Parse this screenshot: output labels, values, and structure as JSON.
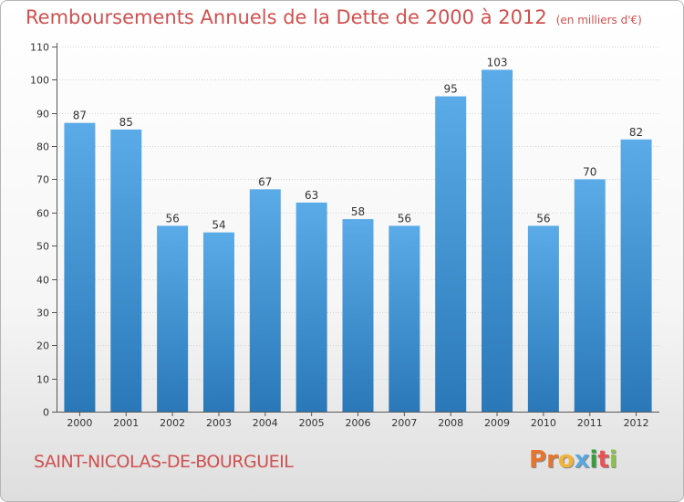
{
  "header": {
    "title": "Remboursements Annuels de la Dette de 2000 à 2012",
    "unit": "(en milliers d'€)"
  },
  "footer": {
    "town": "SAINT-NICOLAS-DE-BOURGUEIL",
    "logo": [
      "P",
      "r",
      "o",
      "x",
      "i",
      "t",
      "i"
    ]
  },
  "colors": {
    "title": "#d0504f",
    "bar_top": "#5aabe8",
    "bar_bottom": "#2a78b8",
    "logo": [
      "#e8742c",
      "#e8742c",
      "#f1b33a",
      "#5aa7dd",
      "#3a9c3a",
      "#e85454",
      "#8bc34a"
    ]
  },
  "chart_data": {
    "type": "bar",
    "categories": [
      "2000",
      "2001",
      "2002",
      "2003",
      "2004",
      "2005",
      "2006",
      "2007",
      "2008",
      "2009",
      "2010",
      "2011",
      "2012"
    ],
    "values": [
      87,
      85,
      56,
      54,
      67,
      63,
      58,
      56,
      95,
      103,
      56,
      70,
      82
    ],
    "ylim": [
      0,
      110
    ],
    "yticks": [
      0,
      10,
      20,
      30,
      40,
      50,
      60,
      70,
      80,
      90,
      100,
      110
    ],
    "grid": true,
    "data_labels": true
  }
}
